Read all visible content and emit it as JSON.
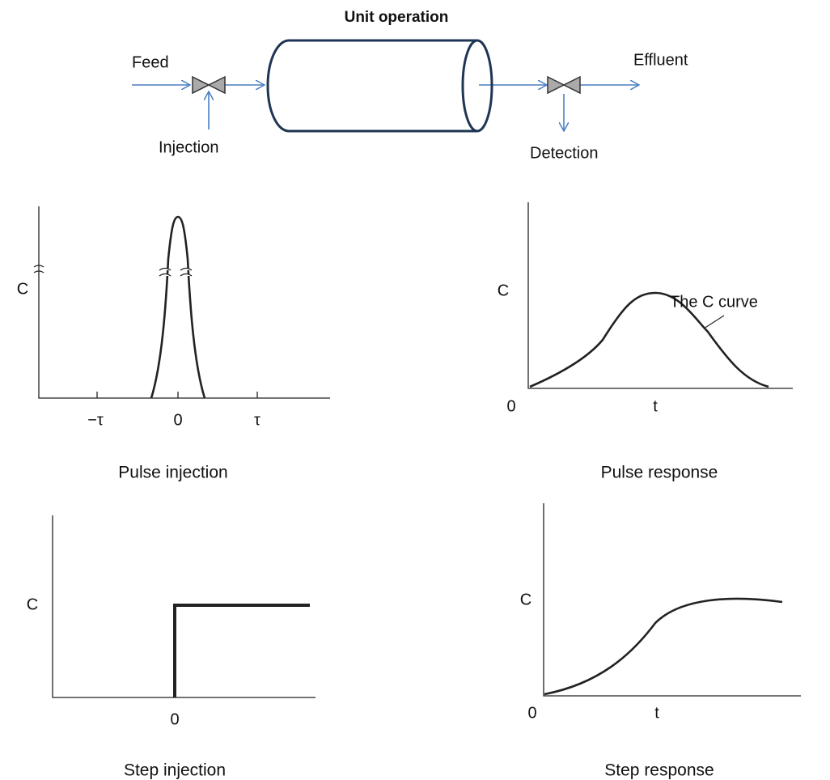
{
  "process": {
    "title": "Unit operation",
    "feed": "Feed",
    "injection": "Injection",
    "effluent": "Effluent",
    "detection": "Detection"
  },
  "panels": [
    {
      "caption": "Pulse injection",
      "y_label": "C",
      "x_labels": [
        "−τ",
        "0",
        "τ"
      ]
    },
    {
      "caption": "Pulse response",
      "y_label": "C",
      "origin": "0",
      "x_label": "t",
      "annotation": "The C curve"
    },
    {
      "caption": "Step injection",
      "y_label": "C",
      "x_labels": [
        "0"
      ]
    },
    {
      "caption": "Step response",
      "y_label": "C",
      "origin": "0",
      "x_label": "t"
    }
  ]
}
